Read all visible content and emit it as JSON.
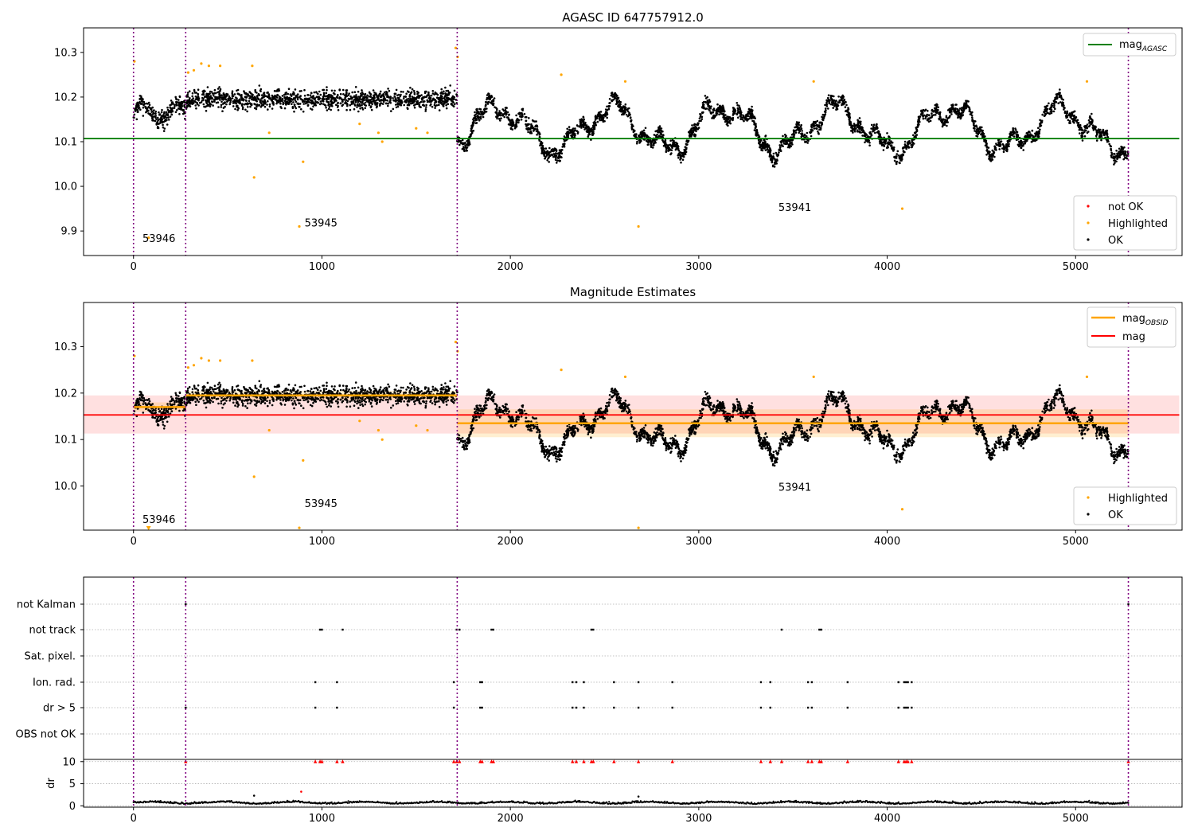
{
  "figure": {
    "background": "#ffffff"
  },
  "chart_data": [
    {
      "type": "scatter",
      "title": "AGASC ID 647757912.0",
      "xlabel": "",
      "ylabel": "",
      "xlim": [
        -265,
        5565
      ],
      "ylim": [
        9.845,
        10.355
      ],
      "xticks": [
        "0",
        "1000",
        "2000",
        "3000",
        "4000",
        "5000",
        "6000"
      ],
      "yticks": [
        "9.9",
        "10.0",
        "10.1",
        "10.2",
        "10.3"
      ],
      "obs_boundaries": [
        0,
        277,
        1718,
        5280
      ],
      "obs_labels": [
        {
          "text": "53946",
          "x": 135,
          "y": 9.875
        },
        {
          "text": "53945",
          "x": 995,
          "y": 9.91
        },
        {
          "text": "53941",
          "x": 3510,
          "y": 9.945
        }
      ],
      "ref_line": {
        "name": "mag",
        "subscript": "AGASC",
        "value": 10.107,
        "x": [
          -265,
          5550
        ],
        "color": "#008000"
      },
      "legend_top": [
        {
          "label": "mag",
          "sub": "AGASC",
          "kind": "line",
          "color": "#008000"
        }
      ],
      "legend_bottom": [
        {
          "label": "not OK",
          "kind": "marker",
          "color": "#ff0000"
        },
        {
          "label": "Highlighted",
          "kind": "marker",
          "color": "#ffa500"
        },
        {
          "label": "OK",
          "kind": "marker",
          "color": "#000000"
        }
      ],
      "series": [
        {
          "name": "OK",
          "color": "#000000",
          "segments": [
            {
              "x0": 0,
              "x1": 277,
              "base": 10.165,
              "amp": 0.035
            },
            {
              "x0": 277,
              "x1": 1718,
              "base": 10.195,
              "amp": 0.02
            },
            {
              "x0": 1718,
              "x1": 5280,
              "base": 10.13,
              "amp": 0.045
            }
          ]
        },
        {
          "name": "Highlighted",
          "color": "#ffa500",
          "points": [
            [
              5,
              10.28
            ],
            [
              80,
              9.885
            ],
            [
              290,
              10.255
            ],
            [
              320,
              10.26
            ],
            [
              360,
              10.275
            ],
            [
              400,
              10.27
            ],
            [
              460,
              10.27
            ],
            [
              630,
              10.27
            ],
            [
              640,
              10.02
            ],
            [
              720,
              10.12
            ],
            [
              880,
              9.91
            ],
            [
              900,
              10.055
            ],
            [
              1200,
              10.14
            ],
            [
              1300,
              10.12
            ],
            [
              1320,
              10.1
            ],
            [
              1500,
              10.13
            ],
            [
              1560,
              10.12
            ],
            [
              1710,
              10.31
            ],
            [
              1720,
              10.29
            ],
            [
              2270,
              10.25
            ],
            [
              2610,
              10.235
            ],
            [
              2680,
              9.91
            ],
            [
              3610,
              10.235
            ],
            [
              4080,
              9.95
            ],
            [
              5060,
              10.235
            ]
          ]
        }
      ]
    },
    {
      "type": "scatter",
      "title": "Magnitude Estimates",
      "xlabel": "",
      "ylabel": "",
      "xlim": [
        -265,
        5565
      ],
      "ylim": [
        9.905,
        10.395
      ],
      "xticks": [
        "0",
        "1000",
        "2000",
        "3000",
        "4000",
        "5000",
        "6000"
      ],
      "yticks": [
        "10.0",
        "10.1",
        "10.2",
        "10.3"
      ],
      "obs_boundaries": [
        0,
        277,
        1718,
        5280
      ],
      "obs_labels": [
        {
          "text": "53946",
          "x": 135,
          "y": 9.92
        },
        {
          "text": "53945",
          "x": 995,
          "y": 9.955
        },
        {
          "text": "53941",
          "x": 3510,
          "y": 9.99
        }
      ],
      "mag_line": {
        "name": "mag",
        "value": 10.153,
        "band": [
          10.113,
          10.195
        ],
        "x": [
          -265,
          5550
        ],
        "color": "#ff0000"
      },
      "obsid_mags": [
        {
          "x0": 0,
          "x1": 277,
          "value": 10.17,
          "band": [
            10.16,
            10.18
          ]
        },
        {
          "x0": 277,
          "x1": 1718,
          "value": 10.195,
          "band": [
            10.185,
            10.205
          ]
        },
        {
          "x0": 1718,
          "x1": 5280,
          "value": 10.135,
          "band": [
            10.105,
            10.165
          ]
        }
      ],
      "legend_top": [
        {
          "label": "mag",
          "sub": "OBSID",
          "kind": "line",
          "color": "#ffa500"
        },
        {
          "label": "mag",
          "kind": "line",
          "color": "#ff0000"
        }
      ],
      "legend_bottom": [
        {
          "label": "Highlighted",
          "kind": "marker",
          "color": "#ffa500"
        },
        {
          "label": "OK",
          "kind": "marker",
          "color": "#000000"
        }
      ]
    },
    {
      "type": "scatter",
      "title": "",
      "xlabel": "",
      "xlim": [
        -265,
        5565
      ],
      "xticks": [
        "0",
        "1000",
        "2000",
        "3000",
        "4000",
        "5000",
        "6000"
      ],
      "flag_rows": [
        "not Kalman",
        "not track",
        "Sat. pixel.",
        "Ion. rad.",
        "dr > 5",
        "OBS not OK"
      ],
      "flag_points": {
        "not Kalman": [
          277,
          5280
        ],
        "not track": [
          990,
          1000,
          1110,
          1715,
          1730,
          1900,
          1910,
          2430,
          2440,
          3440,
          3640,
          3650
        ],
        "Sat. pixel.": [],
        "Ion. rad.": [
          965,
          1080,
          1700,
          1840,
          1850,
          2330,
          2350,
          2390,
          2550,
          2680,
          2860,
          3330,
          3380,
          3580,
          3600,
          3790,
          4060,
          4090,
          4100,
          4110,
          4130
        ],
        "dr > 5": [
          277,
          965,
          1080,
          1700,
          1840,
          1850,
          2330,
          2350,
          2390,
          2550,
          2680,
          2860,
          3330,
          3380,
          3580,
          3600,
          3790,
          4060,
          4090,
          4100,
          4110,
          4130
        ],
        "OBS not OK": []
      },
      "dr": {
        "ylabel": "dr",
        "ylim": [
          -0.3,
          10.5
        ],
        "yticks": [
          "0",
          "5",
          "10"
        ],
        "baseline": 0.6,
        "outliers": [
          [
            640,
            2.3
          ],
          [
            890,
            3.2
          ],
          [
            2680,
            2.1
          ]
        ],
        "clipped_x": [
          277,
          965,
          990,
          1000,
          1080,
          1110,
          1700,
          1715,
          1730,
          1840,
          1850,
          1900,
          1910,
          2330,
          2350,
          2390,
          2430,
          2440,
          2550,
          2680,
          2860,
          3330,
          3380,
          3440,
          3580,
          3600,
          3640,
          3650,
          3790,
          4060,
          4090,
          4100,
          4110,
          4130,
          5280
        ]
      }
    }
  ]
}
